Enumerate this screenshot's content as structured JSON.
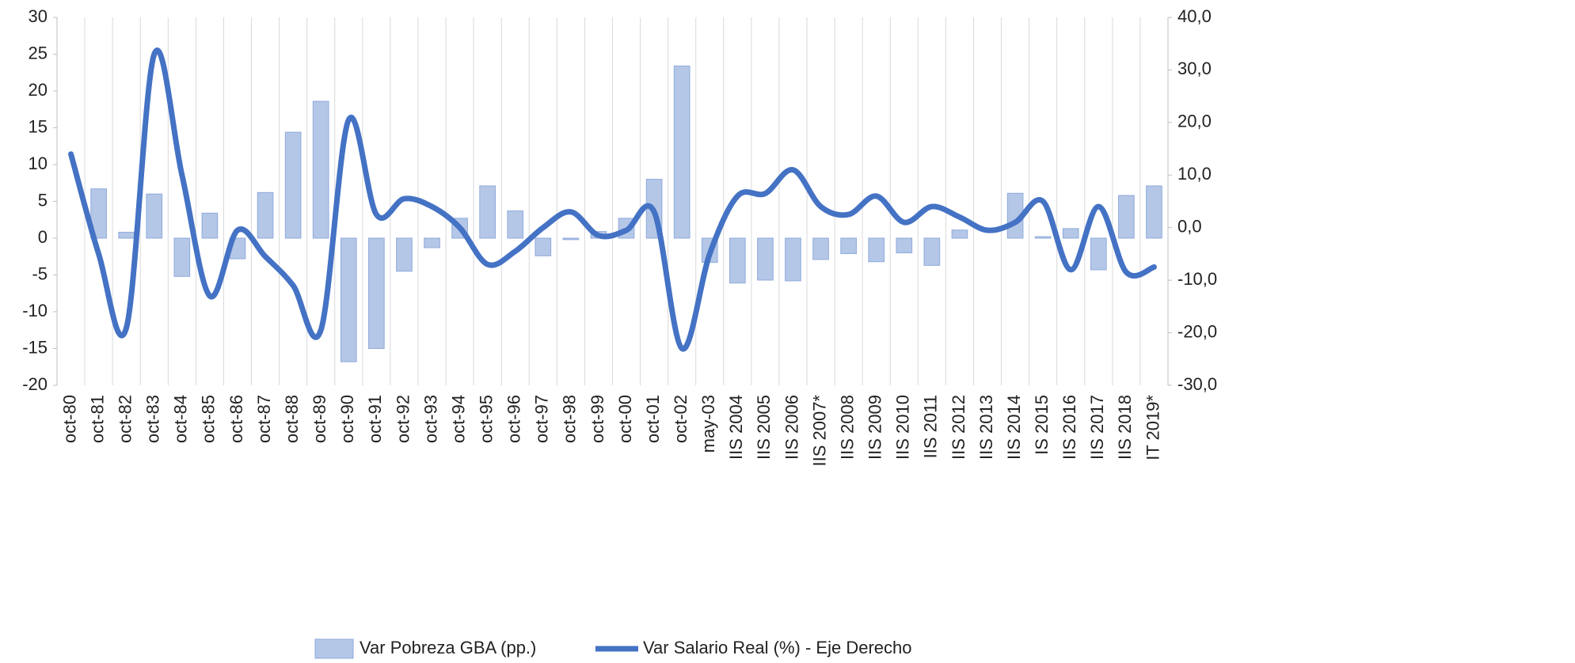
{
  "chart_data": {
    "type": "bar_line",
    "categories": [
      "oct-80",
      "oct-81",
      "oct-82",
      "oct-83",
      "oct-84",
      "oct-85",
      "oct-86",
      "oct-87",
      "oct-88",
      "oct-89",
      "oct-90",
      "oct-91",
      "oct-92",
      "oct-93",
      "oct-94",
      "oct-95",
      "oct-96",
      "oct-97",
      "oct-98",
      "oct-99",
      "oct-00",
      "oct-01",
      "oct-02",
      "may-03",
      "IIS 2004",
      "IIS 2005",
      "IIS 2006",
      "IIS 2007*",
      "IIS 2008",
      "IIS 2009",
      "IIS 2010",
      "IIS 2011",
      "IIS 2012",
      "IIS 2013",
      "IIS 2014",
      "IS 2015",
      "IIS 2016",
      "IIS 2017",
      "IIS 2018",
      "IT 2019*"
    ],
    "series": [
      {
        "name": "Var Pobreza GBA (pp.)",
        "type": "bar",
        "axis": "y",
        "color": "#b4c7e7",
        "edge": "#8faadc",
        "values": [
          null,
          6.7,
          0.8,
          6.0,
          -5.2,
          3.4,
          -2.8,
          6.2,
          14.4,
          18.6,
          -16.8,
          -15.0,
          -4.5,
          -1.3,
          2.7,
          7.1,
          3.7,
          -2.4,
          -0.2,
          0.9,
          2.7,
          8.0,
          23.4,
          -3.3,
          -6.1,
          -5.7,
          -5.8,
          -2.9,
          -2.1,
          -3.2,
          -2.0,
          -3.7,
          1.1,
          null,
          6.1,
          0.2,
          1.3,
          -4.3,
          5.8,
          7.1
        ]
      },
      {
        "name": "Var Salario Real (%) - Eje Derecho",
        "type": "line",
        "axis": "y2",
        "color": "#4472c4",
        "values": [
          14,
          -5,
          -19,
          33,
          10,
          -13,
          -0.5,
          -5.5,
          -11,
          -19.5,
          20.5,
          2.5,
          5.5,
          4,
          0,
          -7,
          -4.5,
          0,
          3,
          -1.5,
          -0.5,
          3,
          -23,
          -5,
          6,
          6.5,
          11,
          4,
          2.5,
          6,
          1,
          4,
          2,
          -0.5,
          1,
          5,
          -8,
          4,
          -8.5,
          -7.5
        ]
      }
    ],
    "ylim": [
      -20,
      30
    ],
    "yticks": [
      -20,
      -15,
      -10,
      -5,
      0,
      5,
      10,
      15,
      20,
      25,
      30
    ],
    "y2lim": [
      -30,
      40
    ],
    "y2ticks": [
      {
        "value": -30,
        "label": "-30,0"
      },
      {
        "value": -20,
        "label": "-20,0"
      },
      {
        "value": -10,
        "label": "-10,0"
      },
      {
        "value": 0,
        "label": "0,0"
      },
      {
        "value": 10,
        "label": "10,0"
      },
      {
        "value": 20,
        "label": "20,0"
      },
      {
        "value": 30,
        "label": "30,0"
      },
      {
        "value": 40,
        "label": "40,0"
      }
    ],
    "grid": "vertical",
    "legend": "bottom"
  }
}
